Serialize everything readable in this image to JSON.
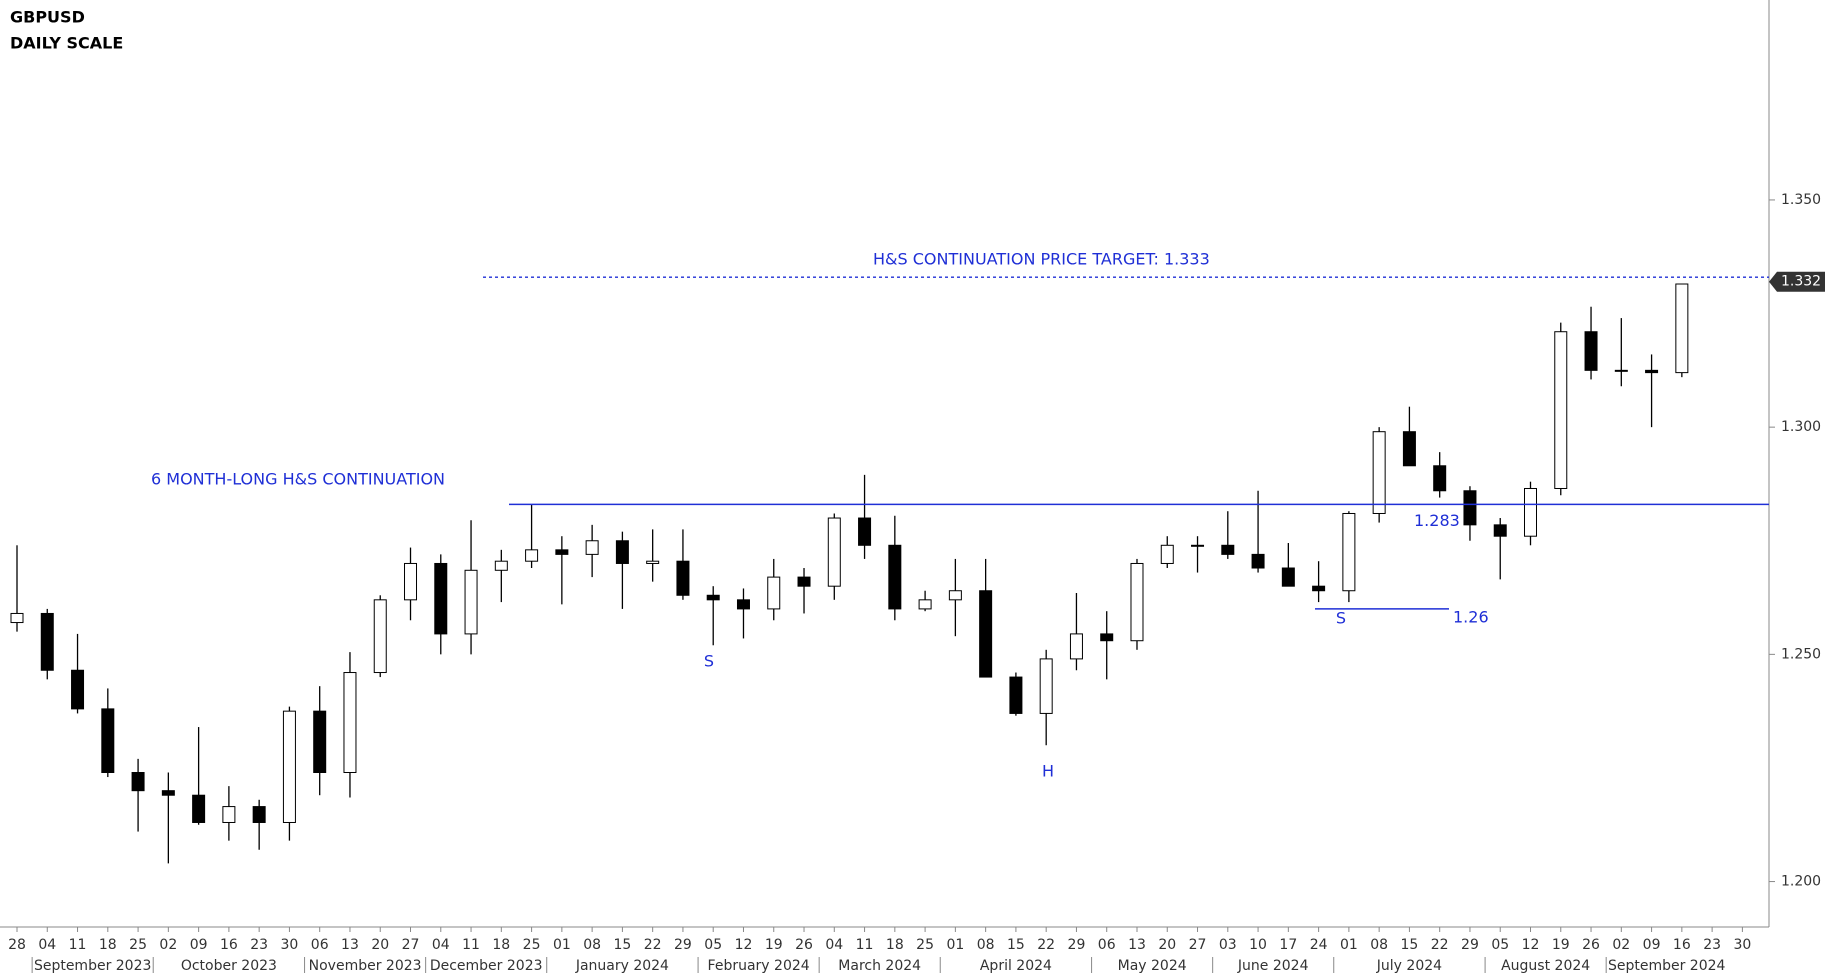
{
  "chart_data": {
    "type": "candlestick",
    "title": "GBPUSD",
    "subtitle": "DAILY SCALE",
    "categories": [
      "28",
      "04",
      "11",
      "18",
      "25",
      "02",
      "09",
      "16",
      "23",
      "30",
      "06",
      "13",
      "20",
      "27",
      "04",
      "11",
      "18",
      "25",
      "01",
      "08",
      "15",
      "22",
      "29",
      "05",
      "12",
      "19",
      "26",
      "04",
      "11",
      "18",
      "25",
      "01",
      "08",
      "15",
      "22",
      "29",
      "06",
      "13",
      "20",
      "27",
      "03",
      "10",
      "17",
      "24",
      "01",
      "08",
      "15",
      "22",
      "29",
      "05",
      "12",
      "19",
      "26",
      "02",
      "09",
      "16",
      "23",
      "30"
    ],
    "month_labels": [
      "September 2023",
      "October 2023",
      "November 2023",
      "December 2023",
      "January 2024",
      "February 2024",
      "March 2024",
      "April 2024",
      "May 2024",
      "June 2024",
      "July 2024",
      "August 2024",
      "September 2024"
    ],
    "open": [
      1.257,
      1.259,
      1.2465,
      1.238,
      1.224,
      1.22,
      1.219,
      1.213,
      1.2165,
      1.213,
      1.2375,
      1.224,
      1.246,
      1.262,
      1.27,
      1.2545,
      1.2685,
      1.2705,
      1.273,
      1.272,
      1.275,
      1.27,
      1.2705,
      1.263,
      1.262,
      1.26,
      1.267,
      1.265,
      1.28,
      1.274,
      1.26,
      1.262,
      1.264,
      1.245,
      1.237,
      1.249,
      1.2545,
      1.253,
      1.27,
      1.274,
      1.274,
      1.272,
      1.269,
      1.265,
      1.264,
      1.281,
      1.299,
      1.2915,
      1.286,
      1.2785,
      1.276,
      1.2865,
      1.321,
      1.3125,
      1.3125,
      1.312,
      null,
      null
    ],
    "high": [
      1.274,
      1.26,
      1.2545,
      1.2425,
      1.227,
      1.224,
      1.234,
      1.221,
      1.218,
      1.2385,
      1.243,
      1.2505,
      1.263,
      1.2735,
      1.272,
      1.2795,
      1.273,
      1.283,
      1.276,
      1.2785,
      1.277,
      1.2775,
      1.2775,
      1.265,
      1.2645,
      1.271,
      1.269,
      1.281,
      1.2895,
      1.2805,
      1.264,
      1.271,
      1.271,
      1.246,
      1.251,
      1.2635,
      1.2595,
      1.271,
      1.276,
      1.276,
      1.2815,
      1.286,
      1.2745,
      1.2705,
      1.2815,
      1.3,
      1.3045,
      1.2945,
      1.287,
      1.28,
      1.288,
      1.323,
      1.3265,
      1.324,
      1.316,
      1.3315,
      null,
      null
    ],
    "low": [
      1.255,
      1.2445,
      1.237,
      1.223,
      1.211,
      1.204,
      1.2125,
      1.209,
      1.207,
      1.209,
      1.219,
      1.2185,
      1.245,
      1.2575,
      1.25,
      1.25,
      1.2615,
      1.269,
      1.261,
      1.267,
      1.26,
      1.266,
      1.262,
      1.252,
      1.2535,
      1.2575,
      1.259,
      1.262,
      1.271,
      1.2575,
      1.2595,
      1.254,
      1.245,
      1.2365,
      1.23,
      1.2465,
      1.2445,
      1.251,
      1.269,
      1.268,
      1.271,
      1.268,
      1.2655,
      1.2615,
      1.2615,
      1.279,
      1.292,
      1.2845,
      1.275,
      1.2665,
      1.274,
      1.285,
      1.3105,
      1.309,
      1.3,
      1.311,
      null,
      null
    ],
    "close": [
      1.259,
      1.2465,
      1.238,
      1.224,
      1.22,
      1.219,
      1.213,
      1.2165,
      1.213,
      1.2375,
      1.224,
      1.246,
      1.262,
      1.27,
      1.2545,
      1.2685,
      1.2705,
      1.273,
      1.272,
      1.275,
      1.27,
      1.2705,
      1.263,
      1.262,
      1.26,
      1.267,
      1.265,
      1.28,
      1.274,
      1.26,
      1.262,
      1.264,
      1.245,
      1.237,
      1.249,
      1.2545,
      1.253,
      1.27,
      1.274,
      1.274,
      1.272,
      1.269,
      1.265,
      1.264,
      1.281,
      1.299,
      1.2915,
      1.286,
      1.2785,
      1.276,
      1.2865,
      1.321,
      1.3125,
      1.3125,
      1.312,
      1.3315,
      null,
      null
    ],
    "ylim": [
      1.19,
      1.394
    ],
    "yticks": [
      {
        "value": 1.2,
        "label": "1.200"
      },
      {
        "value": 1.25,
        "label": "1.250"
      },
      {
        "value": 1.3,
        "label": "1.300"
      },
      {
        "value": 1.35,
        "label": "1.350"
      }
    ],
    "last_price": {
      "value": 1.332,
      "label": "1.332"
    },
    "annotations": [
      {
        "text": "6 MONTH-LONG H&S CONTINUATION"
      },
      {
        "text": "H&S CONTINUATION PRICE TARGET: 1.333",
        "value": 1.333
      },
      {
        "text": "1.283",
        "value": 1.283
      },
      {
        "text": "1.26",
        "value": 1.26
      },
      {
        "text": "S"
      },
      {
        "text": "H"
      },
      {
        "text": "S"
      }
    ],
    "annotation_color": "#1f2fd6"
  }
}
